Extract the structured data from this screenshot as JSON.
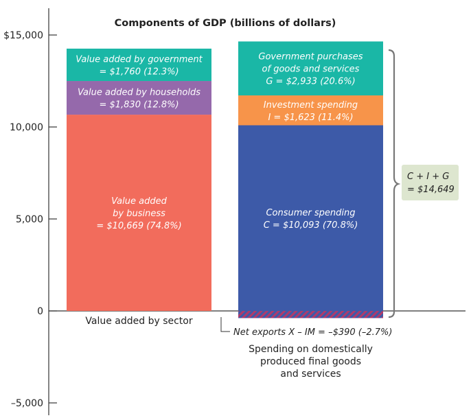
{
  "chart_data": {
    "type": "bar",
    "stacked": true,
    "title": "Components of GDP (billions of dollars)",
    "ylim": [
      -5000,
      16000
    ],
    "yticks": [
      {
        "value": 15000,
        "label": "$15,000"
      },
      {
        "value": 10000,
        "label": "10,000"
      },
      {
        "value": 5000,
        "label": "5,000"
      },
      {
        "value": 0,
        "label": "0"
      },
      {
        "value": -5000,
        "label": "–5,000"
      }
    ],
    "categories": [
      "Value added by sector",
      "Spending on domestically produced final goods and services"
    ],
    "category_label_lines": [
      [
        "Value added by sector"
      ],
      [
        "Spending on domestically",
        "produced final goods",
        "and services"
      ]
    ],
    "bars": [
      {
        "category": "Value added by sector",
        "segments": [
          {
            "name": "Value added by business",
            "value": 10669,
            "percent": 74.8,
            "color": "#f26c5c",
            "label_lines": [
              "Value added",
              "by business",
              "= $10,669 (74.8%)"
            ]
          },
          {
            "name": "Value added by households",
            "value": 1830,
            "percent": 12.8,
            "color": "#9569ab",
            "label_lines": [
              "Value added by households",
              "= $1,830 (12.8%)"
            ]
          },
          {
            "name": "Value added by government",
            "value": 1760,
            "percent": 12.3,
            "color": "#1ab7a6",
            "label_lines": [
              "Value added by government",
              "= $1,760 (12.3%)"
            ]
          }
        ]
      },
      {
        "category": "Spending on domestically produced final goods and services",
        "segments": [
          {
            "name": "Consumer spending",
            "value": 10093,
            "percent": 70.8,
            "color": "#3d5aa8",
            "label_lines": [
              "Consumer spending",
              "C = $10,093 (70.8%)"
            ]
          },
          {
            "name": "Investment spending",
            "value": 1623,
            "percent": 11.4,
            "color": "#f7944a",
            "label_lines": [
              "Investment spending",
              "I = $1,623 (11.4%)"
            ]
          },
          {
            "name": "Government purchases of goods and services",
            "value": 2933,
            "percent": 20.6,
            "color": "#1ab7a6",
            "label_lines": [
              "Government purchases",
              "of goods and services",
              "G = $2,933 (20.6%)"
            ]
          }
        ],
        "negative_segment": {
          "name": "Net exports",
          "value": -390,
          "percent": -2.7,
          "color": "#7a3f8a",
          "label": "Net exports X – IM = –$390 (–2.7%)"
        }
      }
    ],
    "brace_annotation": {
      "label_lines": [
        "C + I + G",
        "= $14,649"
      ],
      "value": 14649
    }
  }
}
